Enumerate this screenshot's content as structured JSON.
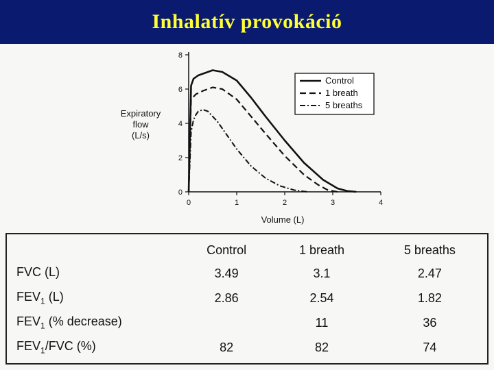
{
  "header": {
    "title": "Inhalatív provokáció"
  },
  "colors": {
    "title_bg": "#0a1a6e",
    "title_fg": "#ffff33",
    "line": "#111111"
  },
  "chart_data": {
    "type": "line",
    "title": "",
    "xlabel": "Volume (L)",
    "ylabel_lines": [
      "Expiratory",
      "flow",
      "(L/s)"
    ],
    "xlim": [
      0,
      4
    ],
    "ylim": [
      0,
      8
    ],
    "xticks": [
      0,
      1,
      2,
      3,
      4
    ],
    "yticks": [
      0,
      2,
      4,
      6,
      8
    ],
    "grid": false,
    "legend_position": "top-right",
    "series": [
      {
        "name": "Control",
        "style": "solid",
        "x": [
          0,
          0.05,
          0.1,
          0.2,
          0.3,
          0.5,
          0.7,
          1.0,
          1.3,
          1.6,
          2.0,
          2.4,
          2.8,
          3.1,
          3.3,
          3.49
        ],
        "y": [
          0,
          6.2,
          6.6,
          6.8,
          6.9,
          7.1,
          7.0,
          6.5,
          5.5,
          4.4,
          3.0,
          1.7,
          0.7,
          0.2,
          0.05,
          0
        ]
      },
      {
        "name": "1 breath",
        "style": "dashed",
        "x": [
          0,
          0.05,
          0.15,
          0.3,
          0.5,
          0.7,
          1.0,
          1.3,
          1.6,
          2.0,
          2.4,
          2.7,
          2.9,
          3.1
        ],
        "y": [
          0,
          5.4,
          5.7,
          5.9,
          6.1,
          6.0,
          5.4,
          4.4,
          3.4,
          2.1,
          1.0,
          0.4,
          0.1,
          0
        ]
      },
      {
        "name": "5 breaths",
        "style": "dashdot",
        "x": [
          0,
          0.05,
          0.1,
          0.15,
          0.2,
          0.3,
          0.4,
          0.6,
          0.8,
          1.0,
          1.3,
          1.6,
          1.9,
          2.2,
          2.47
        ],
        "y": [
          0,
          3.5,
          4.2,
          4.5,
          4.7,
          4.8,
          4.7,
          4.1,
          3.3,
          2.5,
          1.5,
          0.8,
          0.35,
          0.1,
          0
        ]
      }
    ]
  },
  "results_table": {
    "columns": [
      "Control",
      "1 breath",
      "5 breaths"
    ],
    "rows": [
      {
        "label_main": "FVC (L)",
        "label_sub": "",
        "label_rest": "",
        "values": [
          "3.49",
          "3.1",
          "2.47"
        ]
      },
      {
        "label_main": "FEV",
        "label_sub": "1",
        "label_rest": " (L)",
        "values": [
          "2.86",
          "2.54",
          "1.82"
        ]
      },
      {
        "label_main": "FEV",
        "label_sub": "1",
        "label_rest": " (% decrease)",
        "values": [
          "",
          "11",
          "36"
        ]
      },
      {
        "label_main": "FEV",
        "label_sub": "1",
        "label_rest": "/FVC (%)",
        "values": [
          "82",
          "82",
          "74"
        ]
      }
    ]
  }
}
